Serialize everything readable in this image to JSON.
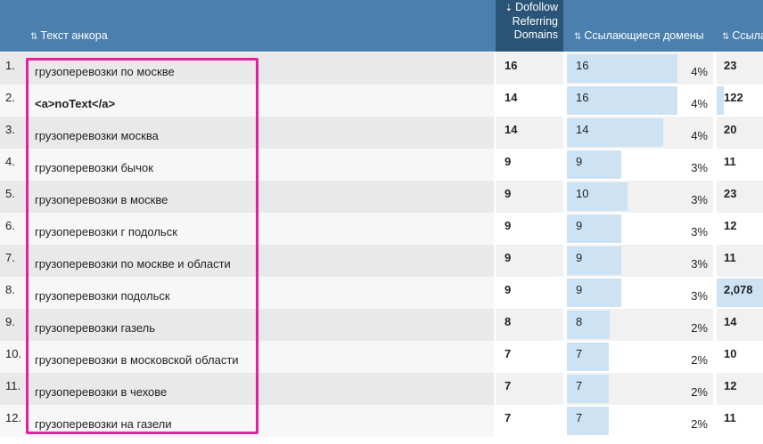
{
  "header": {
    "anchor_label": "Текст анкора",
    "dofollow_line1": "Dofollow",
    "dofollow_line2": "Referring",
    "dofollow_line3": "Domains",
    "refdomains_label": "Ссылающиеся домены",
    "col5_label": "Ссыла"
  },
  "colors": {
    "header_bg": "#4a7fae",
    "active_sort_bg": "#2a5578",
    "bar": "#cde3f4",
    "highlight": "#e61ea0"
  },
  "rows": [
    {
      "idx": "1.",
      "anchor": "грузоперевозки по москве",
      "dofollow": "16",
      "refdomains": "16",
      "share": 0.87,
      "pct": "4%",
      "col5": "23",
      "col5_share": 0
    },
    {
      "idx": "2.",
      "anchor": "<a>noText</a>",
      "dofollow": "14",
      "refdomains": "16",
      "share": 0.87,
      "pct": "4%",
      "col5": "122",
      "col5_share": 0.15
    },
    {
      "idx": "3.",
      "anchor": "грузоперевозки москва",
      "dofollow": "14",
      "refdomains": "14",
      "share": 0.76,
      "pct": "4%",
      "col5": "20",
      "col5_share": 0
    },
    {
      "idx": "4.",
      "anchor": "грузоперевозки бычок",
      "dofollow": "9",
      "refdomains": "9",
      "share": 0.43,
      "pct": "3%",
      "col5": "11",
      "col5_share": 0
    },
    {
      "idx": "5.",
      "anchor": "грузоперевозки в москве",
      "dofollow": "9",
      "refdomains": "10",
      "share": 0.48,
      "pct": "3%",
      "col5": "23",
      "col5_share": 0
    },
    {
      "idx": "6.",
      "anchor": "грузоперевозки г подольск",
      "dofollow": "9",
      "refdomains": "9",
      "share": 0.43,
      "pct": "3%",
      "col5": "12",
      "col5_share": 0
    },
    {
      "idx": "7.",
      "anchor": "грузоперевозки по москве и области",
      "dofollow": "9",
      "refdomains": "9",
      "share": 0.43,
      "pct": "3%",
      "col5": "11",
      "col5_share": 0
    },
    {
      "idx": "8.",
      "anchor": "грузоперевозки подольск",
      "dofollow": "9",
      "refdomains": "9",
      "share": 0.43,
      "pct": "3%",
      "col5": "2,078",
      "col5_share": 1
    },
    {
      "idx": "9.",
      "anchor": "грузоперевозки газель",
      "dofollow": "8",
      "refdomains": "8",
      "share": 0.34,
      "pct": "2%",
      "col5": "14",
      "col5_share": 0
    },
    {
      "idx": "10.",
      "anchor": "грузоперевозки в московской области",
      "dofollow": "7",
      "refdomains": "7",
      "share": 0.33,
      "pct": "2%",
      "col5": "10",
      "col5_share": 0
    },
    {
      "idx": "11.",
      "anchor": "грузоперевозки в чехове",
      "dofollow": "7",
      "refdomains": "7",
      "share": 0.33,
      "pct": "2%",
      "col5": "12",
      "col5_share": 0
    },
    {
      "idx": "12.",
      "anchor": "грузоперевозки на газели",
      "dofollow": "7",
      "refdomains": "7",
      "share": 0.33,
      "pct": "2%",
      "col5": "11",
      "col5_share": 0
    }
  ]
}
